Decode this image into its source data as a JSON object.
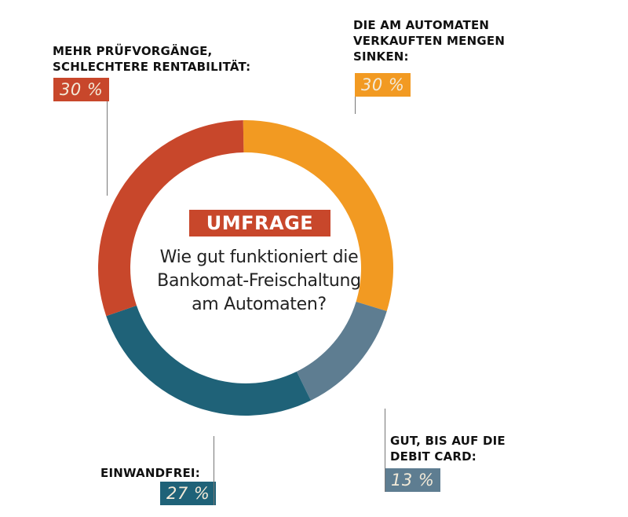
{
  "chart_data": {
    "type": "pie",
    "variant": "donut",
    "title": "UMFRAGE",
    "subtitle": "Wie gut funktioniert die Bankomat-Freischaltung am Automaten?",
    "unit": "%",
    "start_angle_deg": -1,
    "direction": "clockwise",
    "slices": [
      {
        "label": "DIE AM AUTOMATEN VERKAUFTEN MENGEN SINKEN:",
        "label_lines": [
          "DIE AM AUTOMATEN",
          "VERKAUFTEN MENGEN",
          "SINKEN:"
        ],
        "value": 30,
        "display": "30 %",
        "color": "#f29a22"
      },
      {
        "label": "GUT, BIS AUF DIE DEBIT CARD:",
        "label_lines": [
          "GUT, BIS AUF DIE",
          "DEBIT CARD:"
        ],
        "value": 13,
        "display": "13 %",
        "color": "#5e7d91"
      },
      {
        "label": "EINWANDFREI:",
        "label_lines": [
          "EINWANDFREI:"
        ],
        "value": 27,
        "display": "27 %",
        "color": "#1f6278"
      },
      {
        "label": "MEHR PRÜFVORGÄNGE, SCHLECHTERE RENTABILITÄT:",
        "label_lines": [
          "MEHR PRÜFVORGÄNGE,",
          "SCHLECHTERE RENTABILITÄT:"
        ],
        "value": 30,
        "display": "30 %",
        "color": "#c8472b"
      }
    ]
  },
  "center": {
    "badge": "UMFRAGE",
    "question_lines": [
      "Wie gut funktioniert die",
      "Bankomat-Freischaltung",
      "am Automaten?"
    ]
  }
}
